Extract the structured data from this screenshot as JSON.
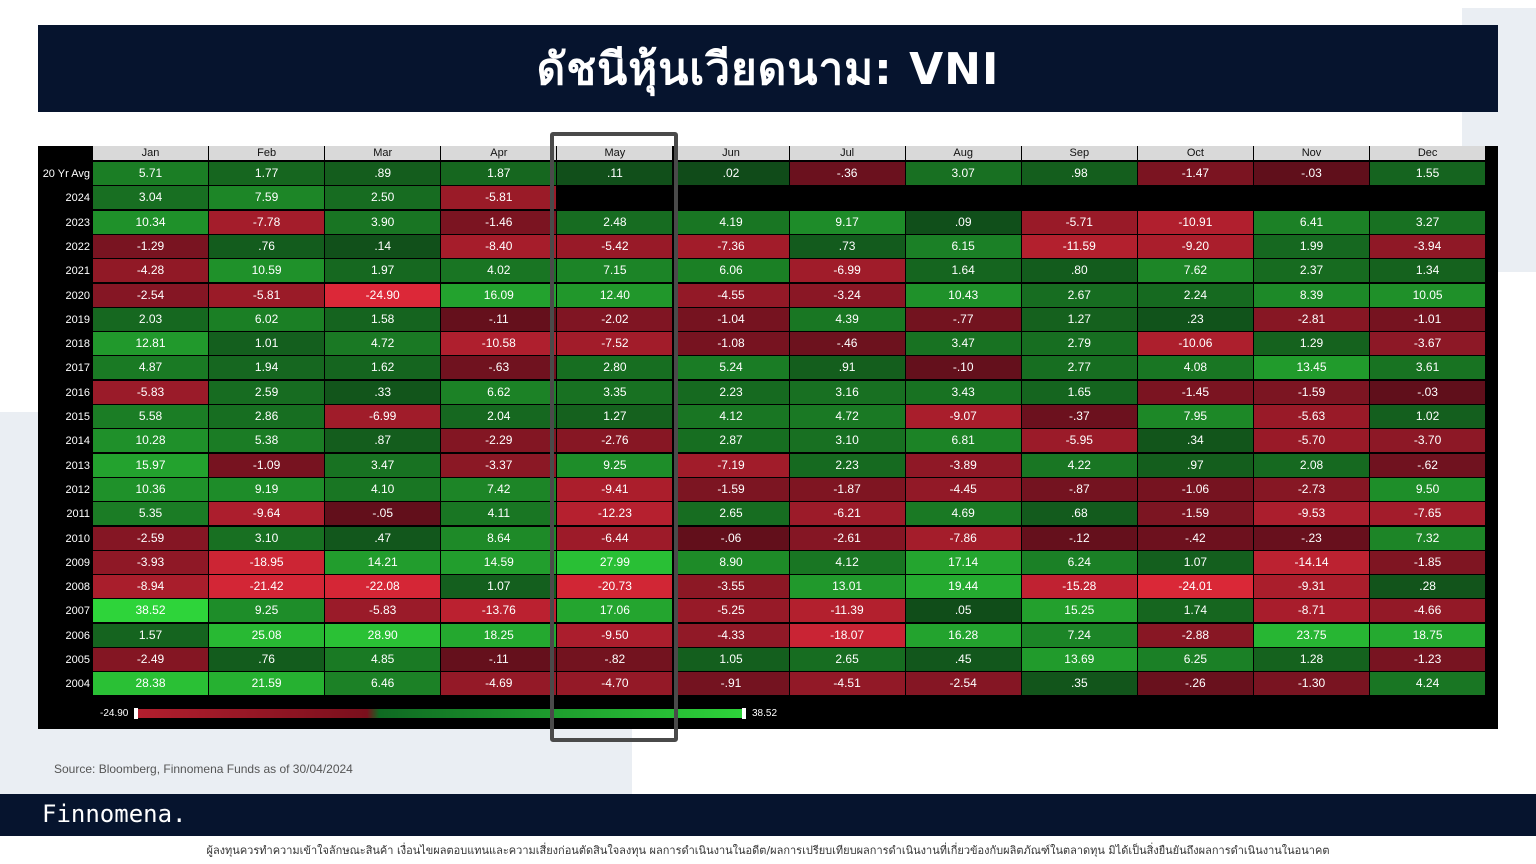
{
  "title": "ดัชนีหุ้นเวียดนาม: VNI",
  "source": "Source: Bloomberg, Finnomena Funds as of 30/04/2024",
  "brand": "Finnomena.",
  "disclaimer": "ผู้ลงทุนควรทำความเข้าใจลักษณะสินค้า เงื่อนไขผลตอบแทนและความเสี่ยงก่อนตัดสินใจลงทุน ผลการดำเนินงานในอดีต/ผลการเปรียบเทียบผลการดำเนินงานที่เกี่ยวข้องกับผลิตภัณฑ์ในตลาดทุน มิได้เป็นสิ่งยืนยันถึงผลการดำเนินงานในอนาคต",
  "colors": {
    "navy": "#06142e",
    "positive": "#2ed43a",
    "negative": "#b21f2e"
  },
  "chart_data": {
    "type": "heatmap",
    "months": [
      "Jan",
      "Feb",
      "Mar",
      "Apr",
      "May",
      "Jun",
      "Jul",
      "Aug",
      "Sep",
      "Oct",
      "Nov",
      "Dec"
    ],
    "rows": [
      {
        "label": "20 Yr Avg",
        "values": [
          "5.71",
          "1.77",
          ".89",
          "1.87",
          ".11",
          ".02",
          "-.36",
          "3.07",
          ".98",
          "-1.47",
          "-.03",
          "1.55"
        ]
      },
      {
        "label": "2024",
        "values": [
          "3.04",
          "7.59",
          "2.50",
          "-5.81",
          "",
          "",
          "",
          "",
          "",
          "",
          "",
          ""
        ]
      },
      {
        "label": "2023",
        "values": [
          "10.34",
          "-7.78",
          "3.90",
          "-1.46",
          "2.48",
          "4.19",
          "9.17",
          ".09",
          "-5.71",
          "-10.91",
          "6.41",
          "3.27"
        ]
      },
      {
        "label": "2022",
        "values": [
          "-1.29",
          ".76",
          ".14",
          "-8.40",
          "-5.42",
          "-7.36",
          ".73",
          "6.15",
          "-11.59",
          "-9.20",
          "1.99",
          "-3.94"
        ]
      },
      {
        "label": "2021",
        "values": [
          "-4.28",
          "10.59",
          "1.97",
          "4.02",
          "7.15",
          "6.06",
          "-6.99",
          "1.64",
          ".80",
          "7.62",
          "2.37",
          "1.34"
        ]
      },
      {
        "label": "2020",
        "values": [
          "-2.54",
          "-5.81",
          "-24.90",
          "16.09",
          "12.40",
          "-4.55",
          "-3.24",
          "10.43",
          "2.67",
          "2.24",
          "8.39",
          "10.05"
        ]
      },
      {
        "label": "2019",
        "values": [
          "2.03",
          "6.02",
          "1.58",
          "-.11",
          "-2.02",
          "-1.04",
          "4.39",
          "-.77",
          "1.27",
          ".23",
          "-2.81",
          "-1.01"
        ]
      },
      {
        "label": "2018",
        "values": [
          "12.81",
          "1.01",
          "4.72",
          "-10.58",
          "-7.52",
          "-1.08",
          "-.46",
          "3.47",
          "2.79",
          "-10.06",
          "1.29",
          "-3.67"
        ]
      },
      {
        "label": "2017",
        "values": [
          "4.87",
          "1.94",
          "1.62",
          "-.63",
          "2.80",
          "5.24",
          ".91",
          "-.10",
          "2.77",
          "4.08",
          "13.45",
          "3.61"
        ]
      },
      {
        "label": "2016",
        "values": [
          "-5.83",
          "2.59",
          ".33",
          "6.62",
          "3.35",
          "2.23",
          "3.16",
          "3.43",
          "1.65",
          "-1.45",
          "-1.59",
          "-.03"
        ]
      },
      {
        "label": "2015",
        "values": [
          "5.58",
          "2.86",
          "-6.99",
          "2.04",
          "1.27",
          "4.12",
          "4.72",
          "-9.07",
          "-.37",
          "7.95",
          "-5.63",
          "1.02"
        ]
      },
      {
        "label": "2014",
        "values": [
          "10.28",
          "5.38",
          ".87",
          "-2.29",
          "-2.76",
          "2.87",
          "3.10",
          "6.81",
          "-5.95",
          ".34",
          "-5.70",
          "-3.70"
        ]
      },
      {
        "label": "2013",
        "values": [
          "15.97",
          "-1.09",
          "3.47",
          "-3.37",
          "9.25",
          "-7.19",
          "2.23",
          "-3.89",
          "4.22",
          ".97",
          "2.08",
          "-.62"
        ]
      },
      {
        "label": "2012",
        "values": [
          "10.36",
          "9.19",
          "4.10",
          "7.42",
          "-9.41",
          "-1.59",
          "-1.87",
          "-4.45",
          "-.87",
          "-1.06",
          "-2.73",
          "9.50"
        ]
      },
      {
        "label": "2011",
        "values": [
          "5.35",
          "-9.64",
          "-.05",
          "4.11",
          "-12.23",
          "2.65",
          "-6.21",
          "4.69",
          ".68",
          "-1.59",
          "-9.53",
          "-7.65"
        ]
      },
      {
        "label": "2010",
        "values": [
          "-2.59",
          "3.10",
          ".47",
          "8.64",
          "-6.44",
          "-.06",
          "-2.61",
          "-7.86",
          "-.12",
          "-.42",
          "-.23",
          "7.32"
        ]
      },
      {
        "label": "2009",
        "values": [
          "-3.93",
          "-18.95",
          "14.21",
          "14.59",
          "27.99",
          "8.90",
          "4.12",
          "17.14",
          "6.24",
          "1.07",
          "-14.14",
          "-1.85"
        ]
      },
      {
        "label": "2008",
        "values": [
          "-8.94",
          "-21.42",
          "-22.08",
          "1.07",
          "-20.73",
          "-3.55",
          "13.01",
          "19.44",
          "-15.28",
          "-24.01",
          "-9.31",
          ".28"
        ]
      },
      {
        "label": "2007",
        "values": [
          "38.52",
          "9.25",
          "-5.83",
          "-13.76",
          "17.06",
          "-5.25",
          "-11.39",
          ".05",
          "15.25",
          "1.74",
          "-8.71",
          "-4.66"
        ]
      },
      {
        "label": "2006",
        "values": [
          "1.57",
          "25.08",
          "28.90",
          "18.25",
          "-9.50",
          "-4.33",
          "-18.07",
          "16.28",
          "7.24",
          "-2.88",
          "23.75",
          "18.75"
        ]
      },
      {
        "label": "2005",
        "values": [
          "-2.49",
          ".76",
          "4.85",
          "-.11",
          "-.82",
          "1.05",
          "2.65",
          ".45",
          "13.69",
          "6.25",
          "1.28",
          "-1.23"
        ]
      },
      {
        "label": "2004",
        "values": [
          "28.38",
          "21.59",
          "6.46",
          "-4.69",
          "-4.70",
          "-.91",
          "-4.51",
          "-2.54",
          ".35",
          "-.26",
          "-1.30",
          "4.24"
        ]
      }
    ],
    "scale": {
      "min": "-24.90",
      "max": "38.52"
    },
    "highlighted_column": "May"
  }
}
